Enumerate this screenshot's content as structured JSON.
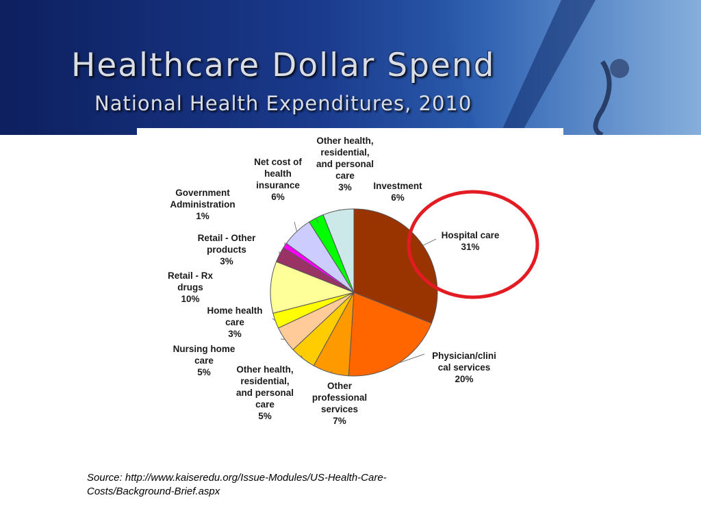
{
  "slide": {
    "title": "Healthcare Dollar Spend",
    "subtitle": "National Health Expenditures, 2010",
    "source": "Source: http://www.kaiseredu.org/Issue-Modules/US-Health-Care-Costs/Background-Brief.aspx"
  },
  "colors": {
    "header_dark": "#0d1f5e",
    "highlight_circle": "#e31b23"
  },
  "chart_data": {
    "type": "pie",
    "title": "",
    "unit": "%",
    "highlighted": "Hospital care",
    "slices": [
      {
        "label": "Hospital care",
        "label_lines": [
          "Hospital care"
        ],
        "value": 31,
        "display": "31%",
        "color": "#993300"
      },
      {
        "label": "Physician/clinical services",
        "label_lines": [
          "Physician/clini",
          "cal services"
        ],
        "value": 20,
        "display": "20%",
        "color": "#ff6600"
      },
      {
        "label": "Other professional services",
        "label_lines": [
          "Other",
          "professional",
          "services"
        ],
        "value": 7,
        "display": "7%",
        "color": "#ff9900"
      },
      {
        "label": "Other health, residential, and personal care",
        "label_lines": [
          "Other health,",
          "residential,",
          "and personal",
          "care"
        ],
        "value": 5,
        "display": "5%",
        "color": "#ffcc00"
      },
      {
        "label": "Nursing home care",
        "label_lines": [
          "Nursing home",
          "care"
        ],
        "value": 5,
        "display": "5%",
        "color": "#ffcc99"
      },
      {
        "label": "Home health care",
        "label_lines": [
          "Home health",
          "care"
        ],
        "value": 3,
        "display": "3%",
        "color": "#ffff00"
      },
      {
        "label": "Retail - Rx drugs",
        "label_lines": [
          "Retail - Rx",
          "drugs"
        ],
        "value": 10,
        "display": "10%",
        "color": "#ffff99"
      },
      {
        "label": "Retail - Other products",
        "label_lines": [
          "Retail - Other",
          "products"
        ],
        "value": 3,
        "display": "3%",
        "color": "#993366"
      },
      {
        "label": "Government Administration",
        "label_lines": [
          "Government",
          "Administration"
        ],
        "value": 1,
        "display": "1%",
        "color": "#ff00ff"
      },
      {
        "label": "Net cost of health insurance",
        "label_lines": [
          "Net cost of",
          "health",
          "insurance"
        ],
        "value": 6,
        "display": "6%",
        "color": "#ccccff"
      },
      {
        "label": "Other health, residential, and personal care",
        "label_lines": [
          "Other health,",
          "residential,",
          "and personal",
          "care"
        ],
        "value": 3,
        "display": "3%",
        "color": "#00ff00"
      },
      {
        "label": "Investment",
        "label_lines": [
          "Investment"
        ],
        "value": 6,
        "display": "6%",
        "color": "#cce8e8"
      }
    ]
  }
}
